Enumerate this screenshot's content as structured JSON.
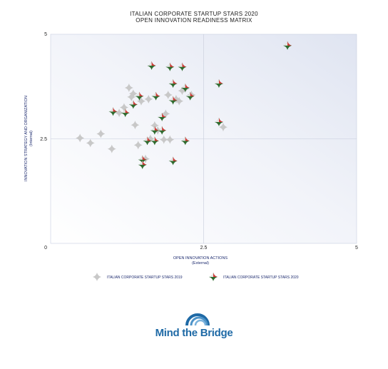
{
  "chart_data": {
    "type": "scatter",
    "title": "ITALIAN CORPORATE STARTUP STARS 2020",
    "subtitle": "OPEN INNOVATION READINESS MATRIX",
    "xlabel": "OPEN INNOVATION ACTIONS",
    "xlabel_sub": "(External)",
    "ylabel": "INNOVATION STRATEGY AND ORGANIZATION",
    "ylabel_sub": "(Internal)",
    "xlim": [
      0,
      5
    ],
    "ylim": [
      0,
      5
    ],
    "x_ticks": [
      "0",
      "2.5",
      "5"
    ],
    "y_ticks": [
      "2.5",
      "5"
    ],
    "origin_label": "0",
    "quadrant_lines": [
      2.5,
      2.5
    ],
    "series": [
      {
        "name": "ITALIAN CORPORATE STARTUP STARS 2019",
        "color": "#c8c8c8",
        "points": [
          [
            0.48,
            2.52
          ],
          [
            0.65,
            2.4
          ],
          [
            0.82,
            2.62
          ],
          [
            1.0,
            2.26
          ],
          [
            1.12,
            3.12
          ],
          [
            1.2,
            3.25
          ],
          [
            1.28,
            3.72
          ],
          [
            1.32,
            3.5
          ],
          [
            1.35,
            3.58
          ],
          [
            1.38,
            2.83
          ],
          [
            1.43,
            2.35
          ],
          [
            1.48,
            3.4
          ],
          [
            1.55,
            2.02
          ],
          [
            1.6,
            3.45
          ],
          [
            1.63,
            2.5
          ],
          [
            1.7,
            2.82
          ],
          [
            1.85,
            2.48
          ],
          [
            1.88,
            3.1
          ],
          [
            1.92,
            3.55
          ],
          [
            1.95,
            2.48
          ],
          [
            2.05,
            3.45
          ],
          [
            2.1,
            3.4
          ],
          [
            2.15,
            3.65
          ],
          [
            2.2,
            3.7
          ],
          [
            2.3,
            3.55
          ],
          [
            2.82,
            2.78
          ],
          [
            1.75,
            2.7
          ]
        ]
      },
      {
        "name": "ITALIAN CORPORATE STARTUP STARS 2020",
        "color": "#2f6b2f",
        "accent": "#d63a3a",
        "points": [
          [
            3.87,
            4.73
          ],
          [
            1.65,
            4.25
          ],
          [
            1.95,
            4.22
          ],
          [
            2.15,
            4.22
          ],
          [
            2.75,
            3.82
          ],
          [
            2.0,
            3.82
          ],
          [
            2.2,
            3.72
          ],
          [
            1.45,
            3.52
          ],
          [
            1.72,
            3.52
          ],
          [
            2.28,
            3.52
          ],
          [
            1.02,
            3.15
          ],
          [
            1.22,
            3.12
          ],
          [
            1.35,
            3.32
          ],
          [
            1.82,
            3.02
          ],
          [
            2.0,
            3.42
          ],
          [
            2.75,
            2.9
          ],
          [
            1.7,
            2.7
          ],
          [
            1.82,
            2.7
          ],
          [
            1.58,
            2.45
          ],
          [
            1.7,
            2.45
          ],
          [
            2.2,
            2.45
          ],
          [
            1.5,
            2.0
          ],
          [
            1.5,
            1.88
          ],
          [
            2.0,
            1.97
          ]
        ]
      }
    ],
    "legend_position": "bottom-center"
  },
  "brand": {
    "logo_text": "Mind the Bridge",
    "logo_color": "#1f6aa6"
  }
}
